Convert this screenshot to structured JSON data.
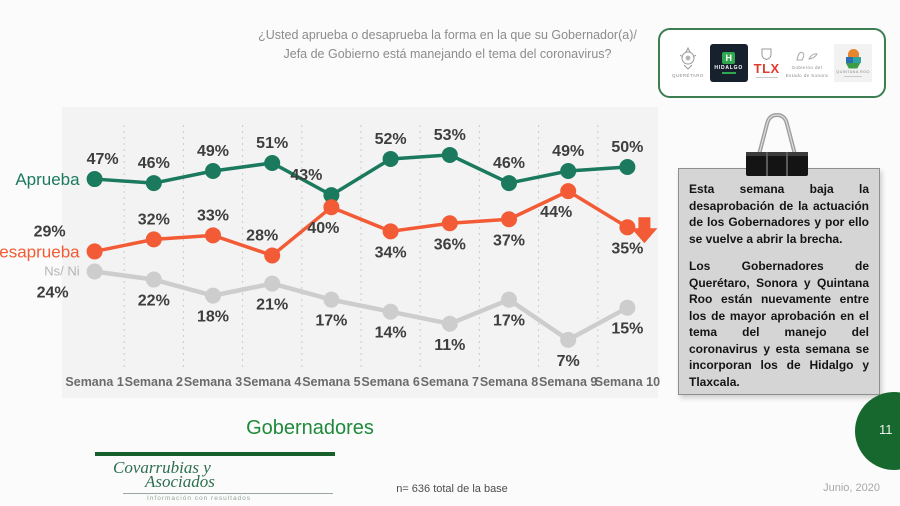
{
  "title": {
    "line1": "¿Usted aprueba o desaprueba la forma en la que su Gobernador(a)/",
    "line2": "Jefa de Gobierno está manejando el tema del coronavirus?"
  },
  "logos": {
    "items": [
      {
        "id": "queretaro",
        "label": "QUERÉTARO"
      },
      {
        "id": "hidalgo",
        "label": "HIDALGO"
      },
      {
        "id": "tlx",
        "label": "TLX"
      },
      {
        "id": "sonora",
        "line1": "Gobierno del",
        "line2": "Estado de Sonora"
      },
      {
        "id": "quintana-roo",
        "label": "QUINTANA ROO"
      }
    ]
  },
  "chart_data": {
    "type": "line",
    "categories": [
      "Semana 1",
      "Semana 2",
      "Semana 3",
      "Semana 4",
      "Semana 5",
      "Semana 6",
      "Semana 7",
      "Semana 8",
      "Semana 9",
      "Semana 10"
    ],
    "series": [
      {
        "name": "Aprueba",
        "color": "#1b7a5e",
        "values": [
          47,
          46,
          49,
          51,
          43,
          52,
          53,
          46,
          49,
          50
        ],
        "labels": "above"
      },
      {
        "name": "Desaprueba",
        "color": "#f25b35",
        "values": [
          29,
          32,
          33,
          28,
          40,
          34,
          36,
          37,
          44,
          35
        ],
        "labels": [
          "above",
          "above",
          "above",
          "above",
          "below",
          "below",
          "below",
          "below",
          "below",
          "below"
        ]
      },
      {
        "name": "Ns/ Ni",
        "color": "#cdcdcd",
        "values": [
          24,
          22,
          18,
          21,
          17,
          14,
          11,
          17,
          7,
          15
        ],
        "labels": "below"
      }
    ],
    "ylim": [
      0,
      60
    ],
    "value_suffix": "%",
    "grid": "dashed-vertical-separators",
    "legend_position": "left-of-first-point",
    "annotations": [
      {
        "type": "block-arrow-down",
        "series": "Desaprueba",
        "at_category": "Semana 10",
        "color": "#f25b35"
      }
    ]
  },
  "note_box": {
    "p1": "Esta semana baja la desaprobación de la actuación de los Gobernadores y por ello se vuelve a abrir la brecha.",
    "p2": "Los Gobernadores de Querétaro, Sonora y Quintana Roo están nuevamente entre los de mayor aprobación en el tema del manejo del coronavirus y esta semana se incorporan los de Hidalgo y Tlaxcala."
  },
  "footer": {
    "section_title": "Gobernadores",
    "base_note": "n= 636 total de la base",
    "date": "Junio, 2020",
    "page_number": "11",
    "brand_line1": "Covarrubias y",
    "brand_line2": "Asociados",
    "brand_tagline": "Información con resultados"
  },
  "colors": {
    "approve": "#1b7a5e",
    "disapprove": "#f25b35",
    "ns_ni": "#cdcdcd",
    "accent_green": "#1f8a3c",
    "dark_green": "#17682e",
    "value_label": "#3e3e3e"
  }
}
